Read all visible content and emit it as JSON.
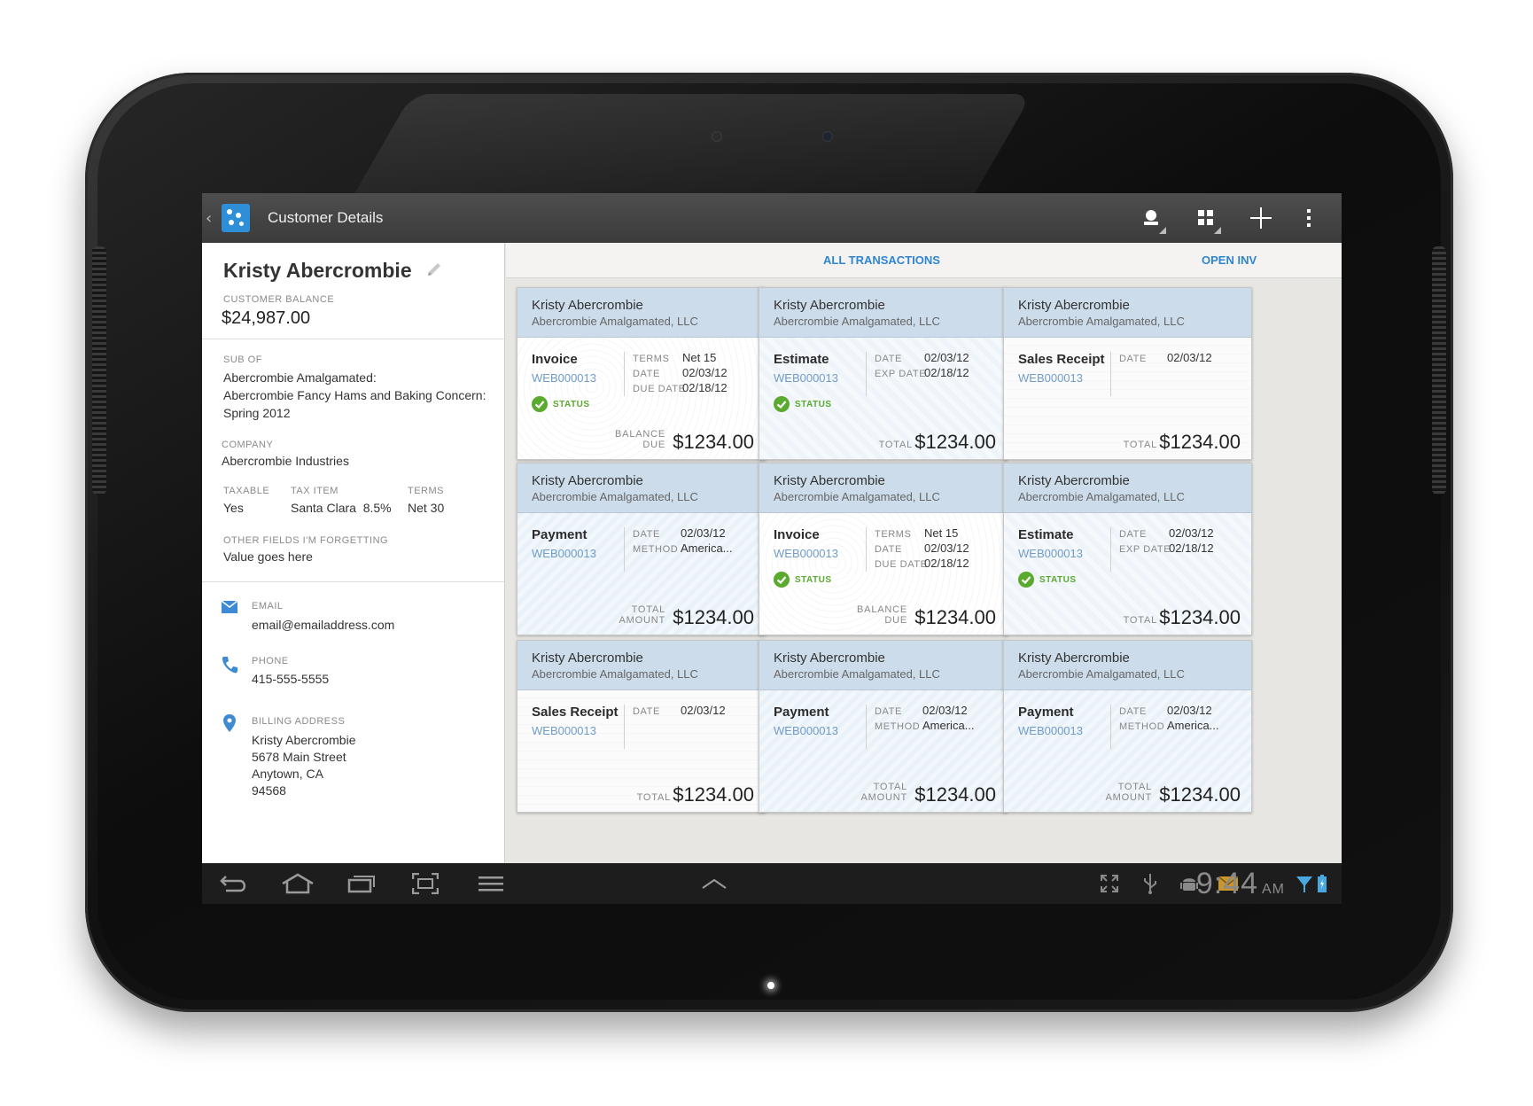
{
  "app": {
    "title": "Customer Details",
    "accent": "#2e8fd8"
  },
  "customer": {
    "name": "Kristy Abercrombie",
    "balance_label": "CUSTOMER BALANCE",
    "balance": "$24,987.00",
    "sub_of_label": "SUB OF",
    "sub_of_lines": [
      "Abercrombie Amalgamated:",
      "Abercrombie Fancy Hams and Baking Concern:",
      "Spring 2012"
    ],
    "company_label": "COMPANY",
    "company": "Abercrombie Industries",
    "taxable_label": "TAXABLE",
    "taxable": "Yes",
    "tax_item_label": "TAX ITEM",
    "tax_item": "Santa Clara  8.5%",
    "terms_label": "TERMS",
    "terms": "Net 30",
    "other_label": "OTHER FIELDS I'M FORGETTING",
    "other": "Value goes here",
    "email_label": "EMAIL",
    "email": "email@emailaddress.com",
    "phone_label": "PHONE",
    "phone": "415-555-5555",
    "billing_label": "BILLING ADDRESS",
    "billing_lines": [
      "Kristy Abercrombie",
      "5678 Main Street",
      "Anytown, CA",
      "94568"
    ]
  },
  "tabs": [
    {
      "label": "ALL TRANSACTIONS",
      "active": true
    },
    {
      "label": "OPEN INV",
      "active": false
    }
  ],
  "cards": [
    {
      "name": "Kristy Abercrombie",
      "company": "Abercrombie Amalgamated, LLC",
      "type": "Invoice",
      "number": "WEB000013",
      "fields": [
        [
          "TERMS",
          "Net 15"
        ],
        [
          "DATE",
          "02/03/12"
        ],
        [
          "DUE DATE",
          "02/18/12"
        ]
      ],
      "status": "STATUS",
      "total_label": [
        "BALANCE",
        "DUE"
      ],
      "amount": "$1234.00",
      "pattern": "invoice"
    },
    {
      "name": "Kristy Abercrombie",
      "company": "Abercrombie Amalgamated, LLC",
      "type": "Estimate",
      "number": "WEB000013",
      "fields": [
        [
          "DATE",
          "02/03/12"
        ],
        [
          "EXP DATE",
          "02/18/12"
        ]
      ],
      "status": "STATUS",
      "total_label": [
        "TOTAL"
      ],
      "amount": "$1234.00",
      "pattern": "estimate"
    },
    {
      "name": "Kristy Abercrombie",
      "company": "Abercrombie Amalgamated, LLC",
      "type": "Sales Receipt",
      "number": "WEB000013",
      "fields": [
        [
          "DATE",
          "02/03/12"
        ]
      ],
      "status": "",
      "total_label": [
        "TOTAL"
      ],
      "amount": "$1234.00",
      "pattern": "receipt"
    },
    {
      "name": "Kristy Abercrombie",
      "company": "Abercrombie Amalgamated, LLC",
      "type": "Payment",
      "number": "WEB000013",
      "fields": [
        [
          "DATE",
          "02/03/12"
        ],
        [
          "METHOD",
          "America..."
        ]
      ],
      "status": "",
      "total_label": [
        "TOTAL",
        "AMOUNT"
      ],
      "amount": "$1234.00",
      "pattern": "payment"
    },
    {
      "name": "Kristy Abercrombie",
      "company": "Abercrombie Amalgamated, LLC",
      "type": "Invoice",
      "number": "WEB000013",
      "fields": [
        [
          "TERMS",
          "Net 15"
        ],
        [
          "DATE",
          "02/03/12"
        ],
        [
          "DUE DATE",
          "02/18/12"
        ]
      ],
      "status": "STATUS",
      "total_label": [
        "BALANCE",
        "DUE"
      ],
      "amount": "$1234.00",
      "pattern": "invoice"
    },
    {
      "name": "Kristy Abercrombie",
      "company": "Abercrombie Amalgamated, LLC",
      "type": "Estimate",
      "number": "WEB000013",
      "fields": [
        [
          "DATE",
          "02/03/12"
        ],
        [
          "EXP DATE",
          "02/18/12"
        ]
      ],
      "status": "STATUS",
      "total_label": [
        "TOTAL"
      ],
      "amount": "$1234.00",
      "pattern": "estimate"
    },
    {
      "name": "Kristy Abercrombie",
      "company": "Abercrombie Amalgamated, LLC",
      "type": "Sales Receipt",
      "number": "WEB000013",
      "fields": [
        [
          "DATE",
          "02/03/12"
        ]
      ],
      "status": "",
      "total_label": [
        "TOTAL"
      ],
      "amount": "$1234.00",
      "pattern": "receipt"
    },
    {
      "name": "Kristy Abercrombie",
      "company": "Abercrombie Amalgamated, LLC",
      "type": "Payment",
      "number": "WEB000013",
      "fields": [
        [
          "DATE",
          "02/03/12"
        ],
        [
          "METHOD",
          "America..."
        ]
      ],
      "status": "",
      "total_label": [
        "TOTAL",
        "AMOUNT"
      ],
      "amount": "$1234.00",
      "pattern": "payment"
    },
    {
      "name": "Kristy Abercrombie",
      "company": "Abercrombie Amalgamated, LLC",
      "type": "Payment",
      "number": "WEB000013",
      "fields": [
        [
          "DATE",
          "02/03/12"
        ],
        [
          "METHOD",
          "America..."
        ]
      ],
      "status": "",
      "total_label": [
        "TOTAL",
        "AMOUNT"
      ],
      "amount": "$1234.00",
      "pattern": "payment"
    }
  ],
  "system_bar": {
    "time": "9:44",
    "ampm": "AM"
  }
}
